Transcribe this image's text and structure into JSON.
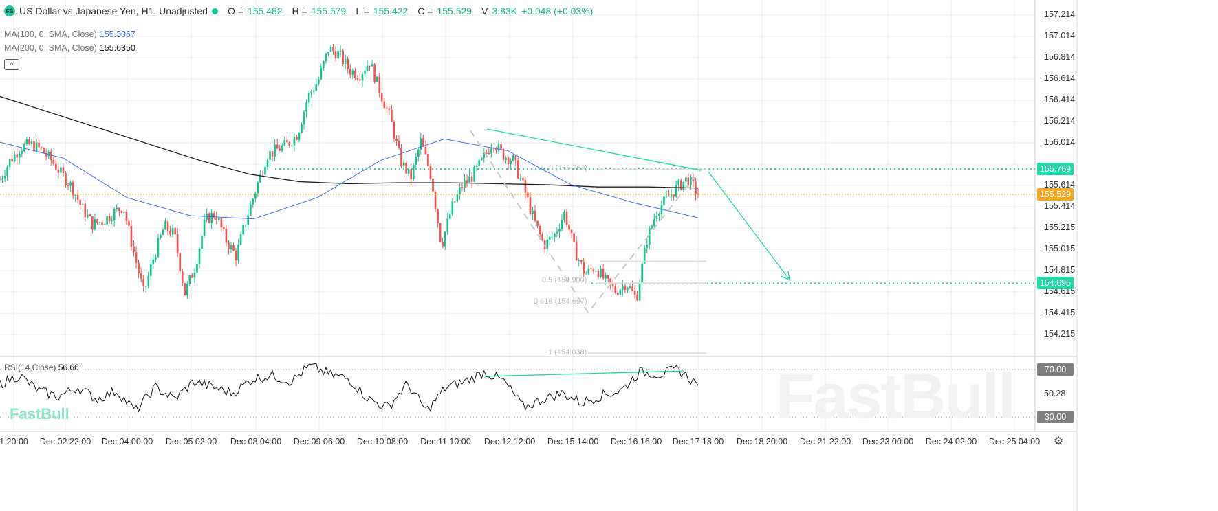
{
  "header": {
    "logo": "FB",
    "title": "US Dollar vs Japanese Yen, H1, Unadjusted",
    "o_label": "O =",
    "o": "155.482",
    "h_label": "H =",
    "h": "155.579",
    "l_label": "L =",
    "l": "155.422",
    "c_label": "C =",
    "c": "155.529",
    "v_label": "V",
    "v": "3.83K",
    "change": "+0.048 (+0.03%)"
  },
  "indicators": {
    "ma100_label": "MA(100, 0, SMA, Close)",
    "ma100_value": "155.3067",
    "ma200_label": "MA(200, 0, SMA, Close)",
    "ma200_value": "155.6350",
    "rsi_label": "RSI(14,Close)",
    "rsi_value": "56.66",
    "collapse_icon": "chevron-up-icon"
  },
  "colors": {
    "up": "#16c08c",
    "down": "#f05350",
    "ma100": "#3d6ff0",
    "ma200": "#222222",
    "level": "#1fd9a8",
    "last": "#f5a623",
    "rsi_band": "#888888"
  },
  "price_axis": [
    "157.214",
    "157.014",
    "156.814",
    "156.614",
    "156.414",
    "156.214",
    "156.014",
    "155.614",
    "155.414",
    "155.215",
    "155.015",
    "154.815",
    "154.615",
    "154.415",
    "154.215"
  ],
  "price_tags": {
    "resistance": "155.769",
    "last": "155.529",
    "support": "154.695"
  },
  "rsi_axis": {
    "upper": "70.00",
    "mid": "50.28",
    "lower": "30.00"
  },
  "time_axis": [
    "1 20:00",
    "Dec 02 22:00",
    "Dec 04 00:00",
    "Dec 05 02:00",
    "Dec 08 04:00",
    "Dec 09 06:00",
    "Dec 10 08:00",
    "Dec 11 10:00",
    "Dec 12 12:00",
    "Dec 15 14:00",
    "Dec 16 16:00",
    "Dec 17 18:00",
    "Dec 18 20:00",
    "Dec 21 22:00",
    "Dec 23 00:00",
    "Dec 24 02:00",
    "Dec 25 04:00"
  ],
  "fib": {
    "f0": "0 (155.763)",
    "f05": "0.5 (154.900)",
    "f0618": "0.618 (154.697)",
    "f1": "1 (154.038)"
  },
  "watermark": "FastBull",
  "chart_data": {
    "type": "candlestick",
    "ylim": [
      154.1,
      157.3
    ],
    "closes": [
      155.67,
      155.85,
      155.97,
      156.0,
      155.95,
      155.85,
      155.72,
      155.6,
      155.4,
      155.25,
      155.28,
      155.35,
      155.42,
      155.0,
      154.6,
      154.95,
      155.23,
      155.15,
      154.6,
      154.85,
      155.29,
      155.35,
      155.1,
      154.95,
      155.3,
      155.6,
      155.9,
      155.95,
      156.0,
      156.1,
      156.45,
      156.6,
      156.9,
      156.85,
      156.7,
      156.65,
      156.78,
      156.5,
      156.25,
      155.85,
      155.68,
      156.03,
      155.7,
      155.05,
      155.4,
      155.61,
      155.7,
      155.85,
      156.03,
      155.9,
      155.85,
      155.6,
      155.29,
      155.05,
      155.15,
      155.36,
      155.0,
      154.78,
      154.85,
      154.71,
      154.62,
      154.7,
      154.55,
      155.1,
      155.38,
      155.49,
      155.6,
      155.68,
      155.53
    ],
    "ma200": [
      156.45,
      156.3,
      156.15,
      156.0,
      155.85,
      155.72,
      155.65,
      155.63,
      155.64,
      155.64,
      155.63,
      155.62,
      155.6,
      155.6,
      155.59
    ],
    "ma100": [
      156.02,
      155.87,
      155.5,
      155.33,
      155.3,
      155.5,
      155.85,
      156.05,
      155.94,
      155.62,
      155.45,
      155.31
    ],
    "rsi": [
      58,
      65,
      52,
      47,
      55,
      45,
      52,
      35,
      55,
      45,
      60,
      55,
      50,
      62,
      65,
      60,
      73,
      66,
      62,
      45,
      38,
      58,
      35,
      55,
      60,
      68,
      60,
      38,
      45,
      50,
      42,
      48,
      52,
      68,
      66,
      70,
      56.66
    ],
    "levels": [
      155.769,
      155.529,
      154.695
    ]
  }
}
